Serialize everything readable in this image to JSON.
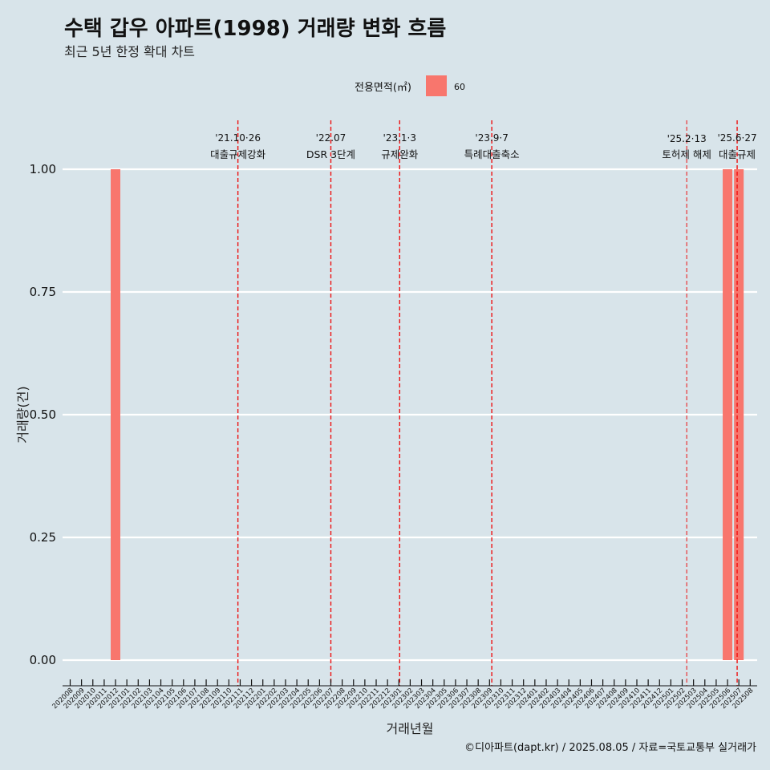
{
  "title": "수택 갑우 아파트(1998) 거래량 변화 흐름",
  "subtitle": "최근 5년 한정 확대 차트",
  "caption": "©디아파트(dapt.kr) / 2025.08.05 / 자료=국토교통부 실거래가",
  "chart_data": {
    "type": "bar",
    "title": "수택 갑우 아파트(1998) 거래량 변화 흐름",
    "subtitle": "최근 5년 한정 확대 차트",
    "xlabel": "거래년월",
    "ylabel": "거래량(건)",
    "ylim": [
      0,
      1
    ],
    "yticks": [
      "0.00",
      "0.25",
      "0.50",
      "0.75",
      "1.00"
    ],
    "grid": "horizontal",
    "legend": {
      "title": "전용면적(㎡)",
      "placement": "top",
      "entries": [
        "60"
      ],
      "color": "#f8766d"
    },
    "categories": [
      "202008",
      "202009",
      "202010",
      "202011",
      "202012",
      "202101",
      "202102",
      "202103",
      "202104",
      "202105",
      "202106",
      "202107",
      "202108",
      "202109",
      "202110",
      "202111",
      "202112",
      "202201",
      "202202",
      "202203",
      "202204",
      "202205",
      "202206",
      "202207",
      "202208",
      "202209",
      "202210",
      "202211",
      "202212",
      "202301",
      "202302",
      "202303",
      "202304",
      "202305",
      "202306",
      "202307",
      "202308",
      "202309",
      "202310",
      "202311",
      "202312",
      "202401",
      "202402",
      "202403",
      "202404",
      "202405",
      "202406",
      "202407",
      "202408",
      "202409",
      "202410",
      "202411",
      "202412",
      "202501",
      "202502",
      "202503",
      "202504",
      "202505",
      "202506",
      "202507",
      "202508"
    ],
    "series": [
      {
        "values": [
          0,
          0,
          0,
          0,
          1,
          0,
          0,
          0,
          0,
          0,
          0,
          0,
          0,
          0,
          0,
          0,
          0,
          0,
          0,
          0,
          0,
          0,
          0,
          0,
          0,
          0,
          0,
          0,
          0,
          0,
          0,
          0,
          0,
          0,
          0,
          0,
          0,
          0,
          0,
          0,
          0,
          0,
          0,
          0,
          0,
          0,
          0,
          0,
          0,
          0,
          0,
          0,
          0,
          0,
          0,
          0,
          0,
          0,
          1,
          1,
          0
        ]
      }
    ],
    "events": [
      {
        "date": "'21.10·26",
        "label": "대출규제강화",
        "month": "202110",
        "offset": 0.8
      },
      {
        "date": "'22.07",
        "label": "DSR 3단계",
        "month": "202207",
        "offset": 0.0
      },
      {
        "date": "'23.1·3",
        "label": "규제완화",
        "month": "202301",
        "offset": 0.07
      },
      {
        "date": "'23.9·7",
        "label": "특례대출축소",
        "month": "202309",
        "offset": 0.2
      },
      {
        "date": "'25.2·13",
        "label": "토허제 해제",
        "month": "202502",
        "offset": 0.4,
        "small": true
      },
      {
        "date": "'25.6·27",
        "label": "대출규제",
        "month": "202506",
        "offset": 0.85
      }
    ]
  }
}
